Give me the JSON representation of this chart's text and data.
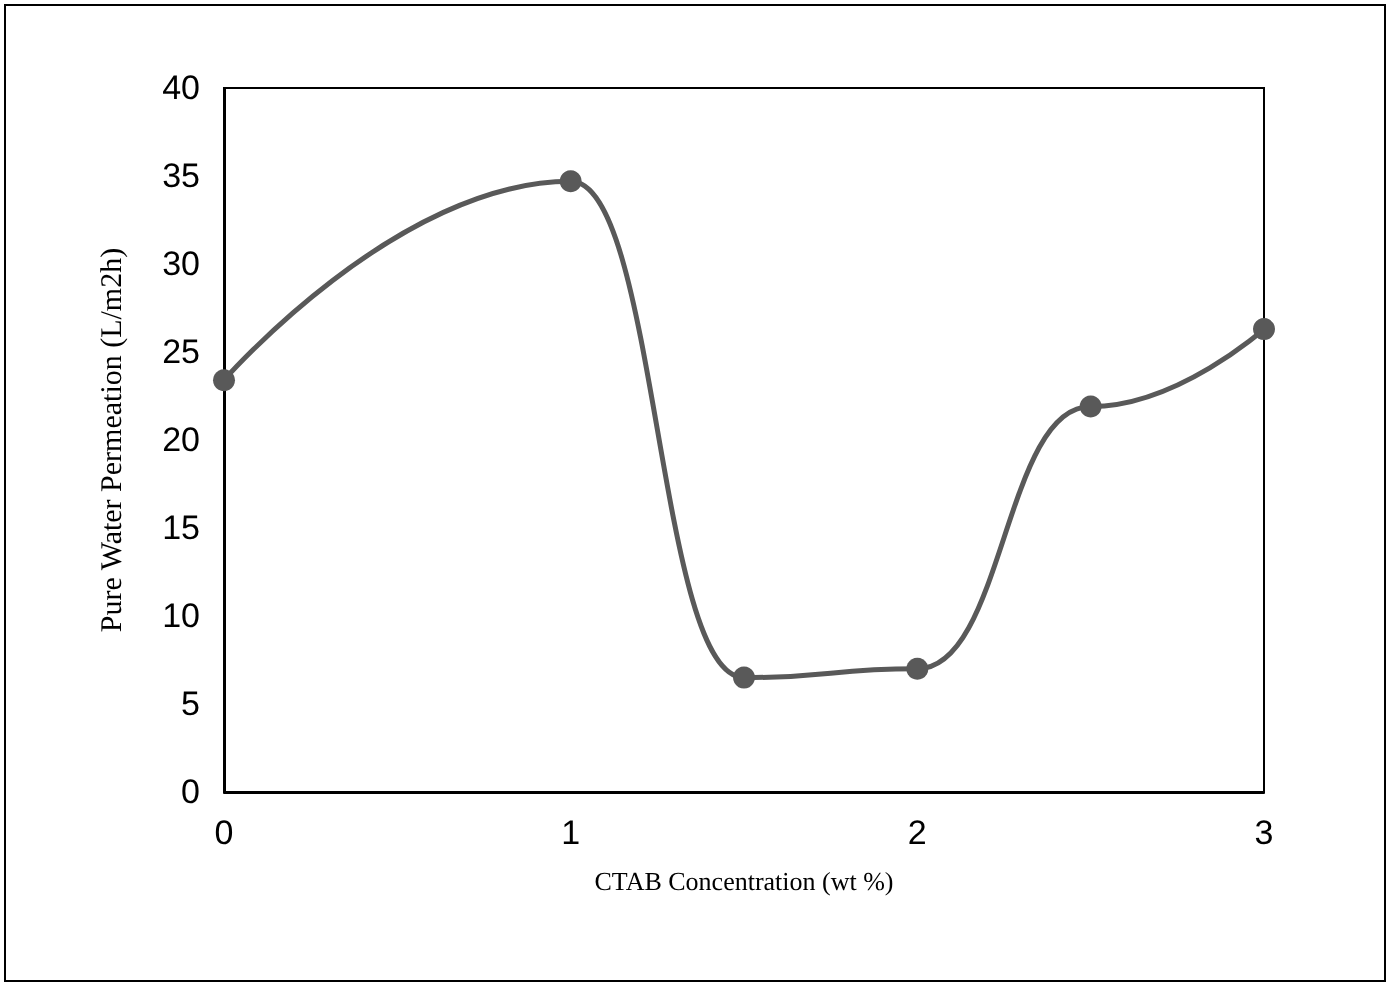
{
  "chart_data": {
    "type": "line",
    "xlabel": "CTAB Concentration (wt %)",
    "ylabel": "Pure Water Permeation (L/m2h)",
    "x": [
      0,
      1,
      1.5,
      2,
      2.5,
      3
    ],
    "series": [
      {
        "color": "#595959",
        "values": [
          23.4,
          34.7,
          6.5,
          7,
          21.9,
          26.3
        ]
      }
    ],
    "xlim": [
      0,
      3
    ],
    "xticks": [
      0,
      1,
      2,
      3
    ],
    "ylim": [
      0,
      40
    ],
    "yticks": [
      0,
      5,
      10,
      15,
      20,
      25,
      30,
      35,
      40
    ],
    "marker": "circle",
    "line_style": "solid",
    "grid": false
  }
}
